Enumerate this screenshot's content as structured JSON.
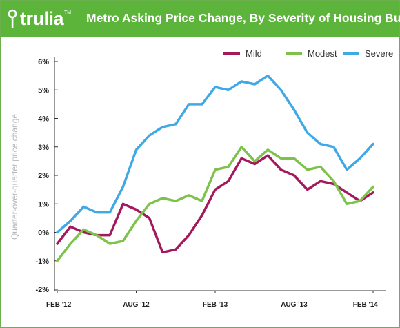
{
  "brand": {
    "name": "trulia",
    "trademark": "TM"
  },
  "chart_data": {
    "type": "line",
    "title": "Metro Asking Price Change, By Severity of Housing Bust",
    "ylabel": "Quarter-over-quarter price change",
    "xlabel": "",
    "ylim": [
      -2,
      6
    ],
    "yticks": [
      "6%",
      "5%",
      "4%",
      "3%",
      "2%",
      "1%",
      "0%",
      "-1%",
      "-2%"
    ],
    "ytick_values": [
      6,
      5,
      4,
      3,
      2,
      1,
      0,
      -1,
      -2
    ],
    "xticks": [
      {
        "label": "FEB '12",
        "index": 0
      },
      {
        "label": "AUG '12",
        "index": 6
      },
      {
        "label": "FEB '13",
        "index": 12
      },
      {
        "label": "AUG '13",
        "index": 18
      },
      {
        "label": "FEB '14",
        "index": 24
      }
    ],
    "grid": false,
    "legend_position": "top-right",
    "series": [
      {
        "name": "Mild",
        "color": "#a3195b",
        "values": [
          -0.4,
          0.2,
          0.0,
          -0.1,
          -0.1,
          1.0,
          0.8,
          0.5,
          -0.7,
          -0.6,
          -0.1,
          0.6,
          1.5,
          1.8,
          2.6,
          2.4,
          2.7,
          2.2,
          2.0,
          1.5,
          1.8,
          1.7,
          1.4,
          1.1,
          1.4
        ]
      },
      {
        "name": "Modest",
        "color": "#7dc24b",
        "values": [
          -1.0,
          -0.4,
          0.1,
          -0.1,
          -0.4,
          -0.3,
          0.4,
          1.0,
          1.2,
          1.1,
          1.3,
          1.1,
          2.2,
          2.3,
          3.0,
          2.5,
          2.9,
          2.6,
          2.6,
          2.2,
          2.3,
          1.8,
          1.0,
          1.1,
          1.6
        ]
      },
      {
        "name": "Severe",
        "color": "#3fa9e6",
        "values": [
          0.0,
          0.4,
          0.9,
          0.7,
          0.7,
          1.6,
          2.9,
          3.4,
          3.7,
          3.8,
          4.5,
          4.5,
          5.1,
          5.0,
          5.3,
          5.2,
          5.5,
          5.0,
          4.3,
          3.5,
          3.1,
          3.0,
          2.2,
          2.6,
          3.1
        ]
      }
    ]
  }
}
